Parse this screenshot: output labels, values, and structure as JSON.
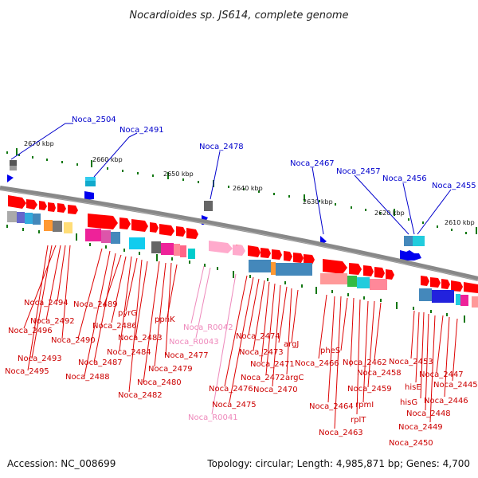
{
  "title": "Nocardioides sp. JS614, complete genome",
  "footer": {
    "accession": "Accession: NC_008699",
    "summary": "Topology: circular; Length: 4,985,871 bp; Genes: 4,700"
  },
  "colors": {
    "gene_forward": "#ff0000",
    "gene_reverse": "#ff0000",
    "upper_label": "#0000cc",
    "lower_label": "#cc0000",
    "rna_label": "#ee88bb",
    "backbone": "#888888",
    "tick": "#119911"
  },
  "kbp_labels": [
    "2670 kbp",
    "2660 kbp",
    "2650 kbp",
    "2640 kbp",
    "2630 kbp",
    "2620 kbp",
    "2610 kbp"
  ],
  "upper_labels": [
    "Noca_2504",
    "Noca_2491",
    "Noca_2478",
    "Noca_2467",
    "Noca_2457",
    "Noca_2456",
    "Noca_2455"
  ],
  "lower_labels": [
    "Noca_2494",
    "Noca_2492",
    "Noca_2496",
    "Noca_2493",
    "Noca_2495",
    "Noca_2489",
    "pyrG",
    "Noca_2486",
    "Noca_2490",
    "Noca_2483",
    "Noca_2484",
    "Noca_2487",
    "Noca_2488",
    "ppnK",
    "Noca_2477",
    "Noca_2479",
    "Noca_2480",
    "Noca_2482",
    "Noca_R0042",
    "Noca_R0043",
    "Noca_R0041",
    "Noca_2474",
    "Noca_2473",
    "argJ",
    "Noca_2471",
    "Noca_2472",
    "argC",
    "Noca_2470",
    "Noca_2476",
    "Noca_2475",
    "pheS",
    "Noca_2466",
    "Noca_2462",
    "Noca_2458",
    "Noca_2459",
    "rpmI",
    "rplT",
    "Noca_2464",
    "Noca_2463",
    "Noca_2453",
    "hisE",
    "Noca_2447",
    "Noca_2445",
    "hisG",
    "Noca_2446",
    "Noca_2448",
    "Noca_2449",
    "Noca_2450"
  ]
}
